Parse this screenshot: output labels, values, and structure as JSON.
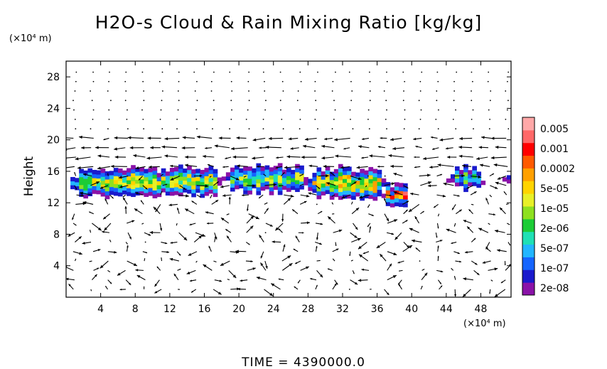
{
  "chart_data": {
    "type": "heatmap",
    "title": "H2O-s Cloud & Rain Mixing Ratio [kg/kg]",
    "ylabel": "Height",
    "y_unit": "(×10⁴ m)",
    "x_unit": "(×10⁴ m)",
    "footer": "TIME = 4390000.0",
    "xlim": [
      0,
      51.5
    ],
    "ylim": [
      0,
      30
    ],
    "x_ticks": [
      "4",
      "8",
      "12",
      "16",
      "20",
      "24",
      "28",
      "32",
      "36",
      "40",
      "44",
      "48"
    ],
    "y_ticks": [
      "4",
      "8",
      "12",
      "16",
      "20",
      "24",
      "28"
    ],
    "colorbar": {
      "labels": [
        "0.005",
        "0.001",
        "0.0002",
        "5e-05",
        "1e-05",
        "2e-06",
        "5e-07",
        "1e-07",
        "2e-08"
      ],
      "colors": [
        "#8a12a8",
        "#1a1acc",
        "#1565ff",
        "#22b6ff",
        "#1fe0b5",
        "#1ccc36",
        "#8ee020",
        "#e8f028",
        "#ffd400",
        "#ffa000",
        "#ff5a00",
        "#ff0000",
        "#ff6868",
        "#ffa8a8"
      ]
    },
    "cloud_regions": [
      {
        "x0": 0.5,
        "x1": 18,
        "y0": 12.5,
        "y1": 16.5,
        "level": 6
      },
      {
        "x0": 18,
        "x1": 28,
        "y0": 13,
        "y1": 16.8,
        "level": 5
      },
      {
        "x0": 28,
        "x1": 37,
        "y0": 12.3,
        "y1": 16.5,
        "level": 7
      },
      {
        "x0": 36,
        "x1": 40,
        "y0": 11,
        "y1": 14.5,
        "level": 10
      },
      {
        "x0": 44,
        "x1": 48.5,
        "y0": 13.3,
        "y1": 16.5,
        "level": 5
      },
      {
        "x0": 50.5,
        "x1": 51.5,
        "y0": 13.3,
        "y1": 16.5,
        "level": 4
      }
    ]
  }
}
